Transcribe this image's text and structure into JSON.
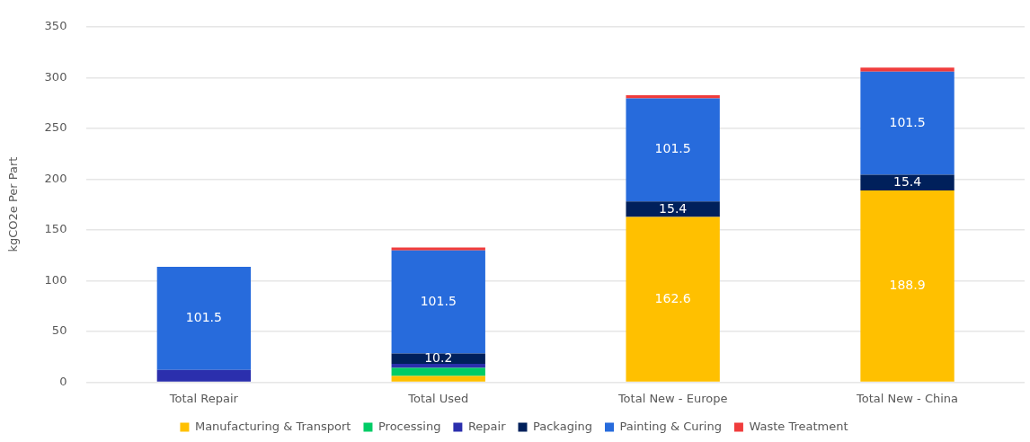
{
  "chart_data": {
    "type": "bar",
    "stacked": true,
    "ylabel": "kgCO2e Per Part",
    "categories": [
      "Total Repair",
      "Total Used",
      "Total New - Europe",
      "Total New - China"
    ],
    "ylim": [
      0,
      350
    ],
    "yticks": [
      0,
      50,
      100,
      150,
      200,
      250,
      300,
      350
    ],
    "grid": "y",
    "legend": "bottom",
    "series": [
      {
        "name": "Manufacturing & Transport",
        "color": "#ffc000",
        "values": [
          null,
          6,
          162.6,
          188.9
        ],
        "value_labels": [
          null,
          null,
          "162.6",
          "188.9"
        ]
      },
      {
        "name": "Processing",
        "color": "#00cc66",
        "values": [
          null,
          8,
          null,
          null
        ]
      },
      {
        "name": "Repair",
        "color": "#2b2fad",
        "values": [
          12,
          4,
          null,
          null
        ]
      },
      {
        "name": "Packaging",
        "color": "#00205b",
        "values": [
          null,
          10.2,
          15.4,
          15.4
        ],
        "value_labels": [
          null,
          "10.2",
          "15.4",
          "15.4"
        ]
      },
      {
        "name": "Painting & Curing",
        "color": "#276bdc",
        "values": [
          101.5,
          101.5,
          101.5,
          101.5
        ],
        "value_labels": [
          "101.5",
          "101.5",
          "101.5",
          "101.5"
        ]
      },
      {
        "name": "Waste Treatment",
        "color": "#f03c3c",
        "values": [
          null,
          3,
          3,
          4
        ]
      }
    ]
  }
}
